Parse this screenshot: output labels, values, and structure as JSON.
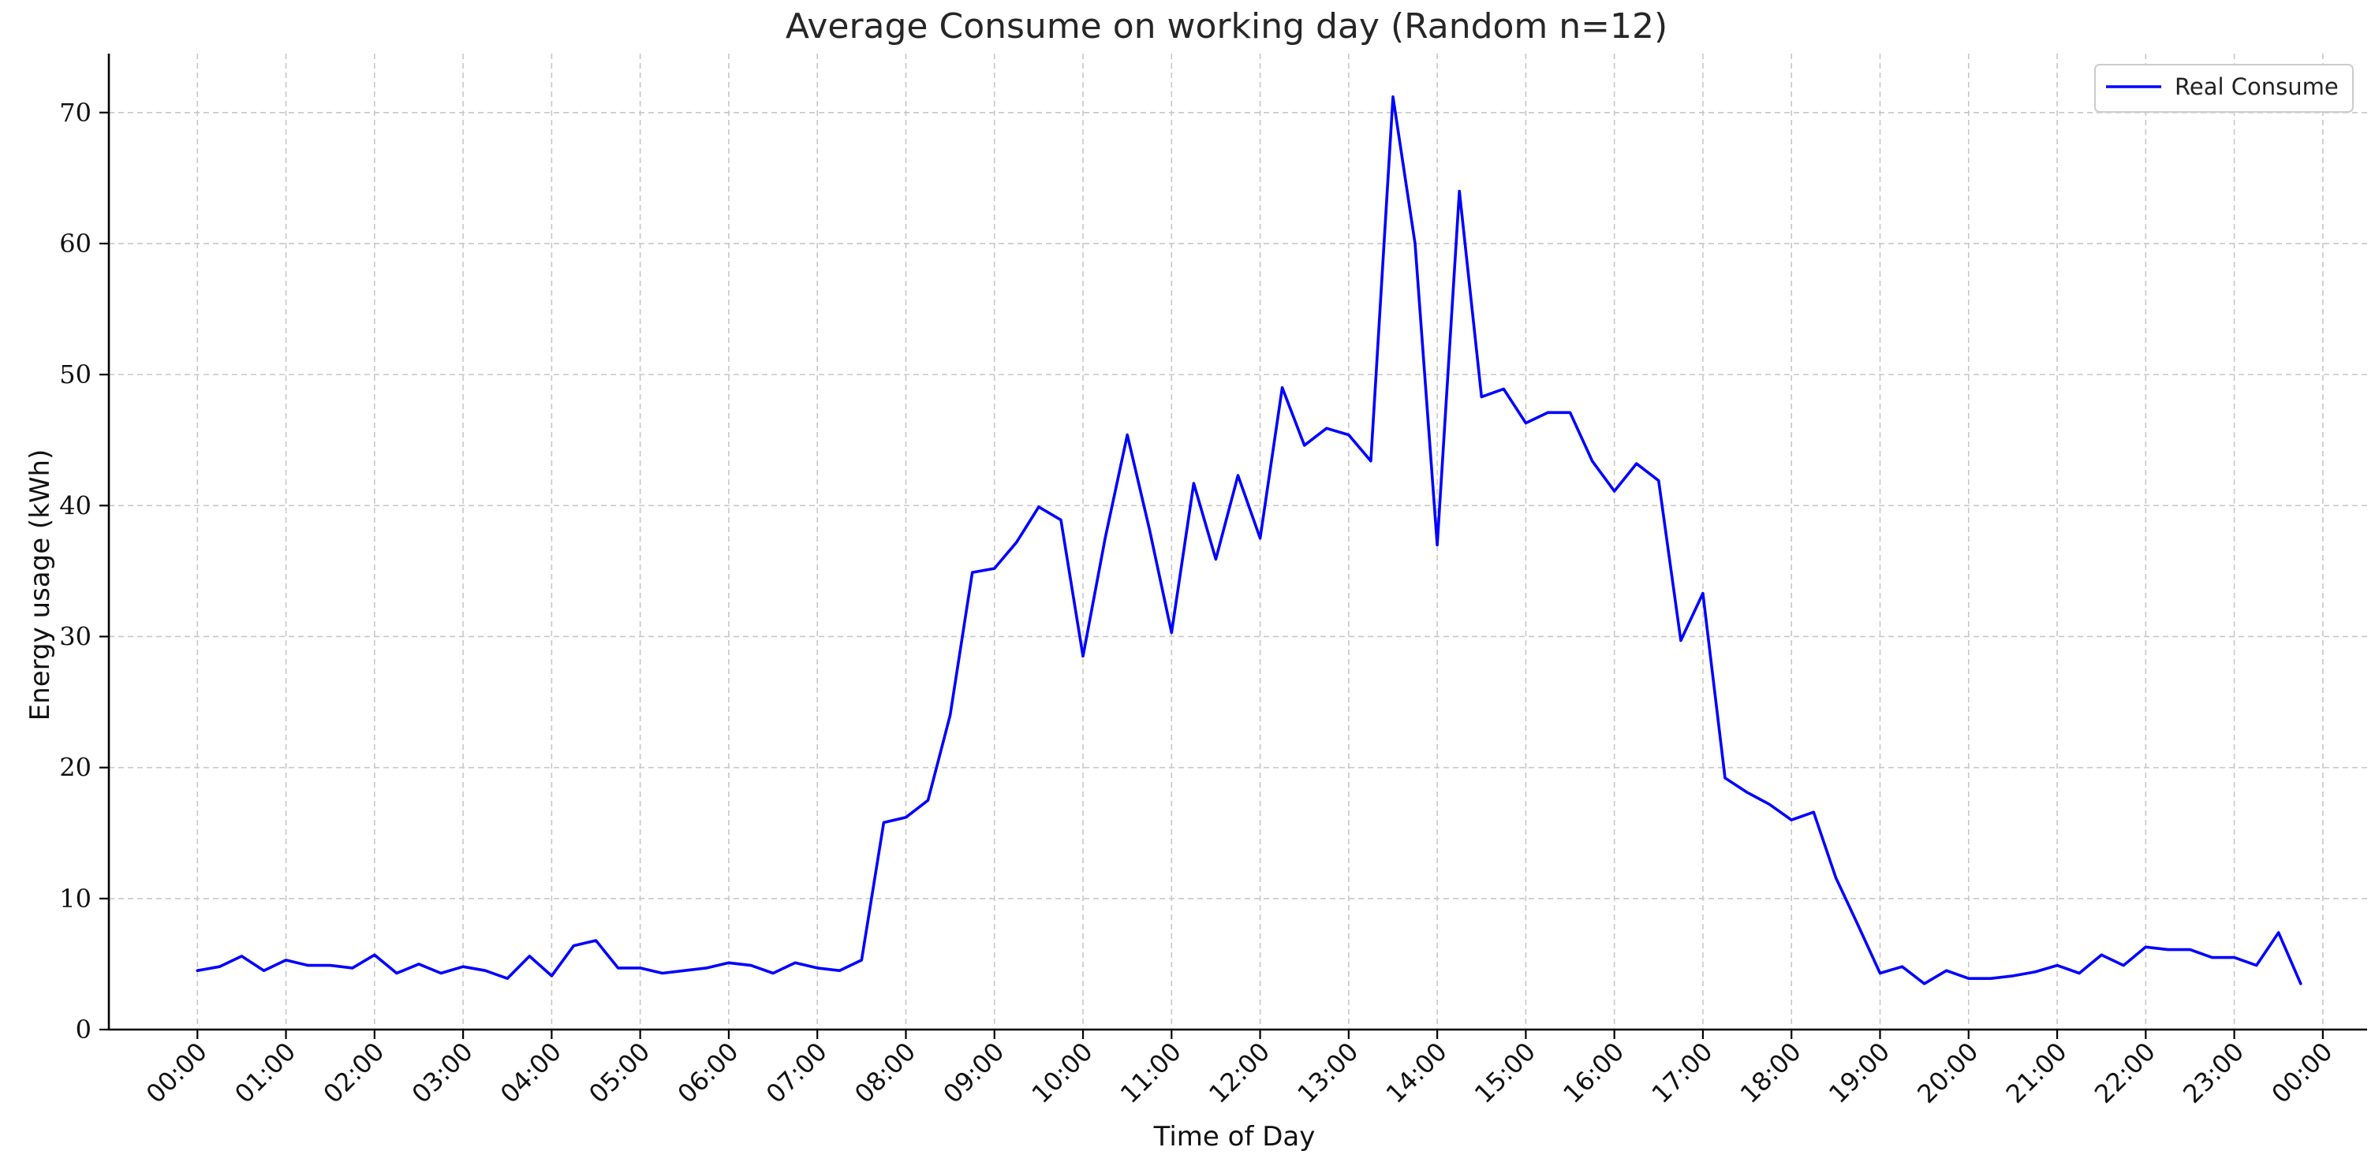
{
  "chart_data": {
    "type": "line",
    "title": "Average Consume on working day (Random n=12)",
    "xlabel": "Time of Day",
    "ylabel": "Energy usage (kWh)",
    "x_ticks": [
      "00:00",
      "01:00",
      "02:00",
      "03:00",
      "04:00",
      "05:00",
      "06:00",
      "07:00",
      "08:00",
      "09:00",
      "10:00",
      "11:00",
      "12:00",
      "13:00",
      "14:00",
      "15:00",
      "16:00",
      "17:00",
      "18:00",
      "19:00",
      "20:00",
      "21:00",
      "22:00",
      "23:00",
      "00:00"
    ],
    "y_ticks": [
      0,
      10,
      20,
      30,
      40,
      50,
      60,
      70
    ],
    "xlim_hours": [
      -1,
      24.5
    ],
    "ylim": [
      0,
      74.5
    ],
    "grid": true,
    "legend_position": "top-right",
    "series": [
      {
        "name": "Real Consume",
        "color": "#0000ff",
        "x_hours": [
          0,
          0.25,
          0.5,
          0.75,
          1,
          1.25,
          1.5,
          1.75,
          2,
          2.25,
          2.5,
          2.75,
          3,
          3.25,
          3.5,
          3.75,
          4,
          4.25,
          4.5,
          4.75,
          5,
          5.25,
          5.5,
          5.75,
          6,
          6.25,
          6.5,
          6.75,
          7,
          7.25,
          7.5,
          7.75,
          8,
          8.25,
          8.5,
          8.75,
          9,
          9.25,
          9.5,
          9.75,
          10,
          10.25,
          10.5,
          10.75,
          11,
          11.25,
          11.5,
          11.75,
          12,
          12.25,
          12.5,
          12.75,
          13,
          13.25,
          13.5,
          13.75,
          14,
          14.25,
          14.5,
          14.75,
          15,
          15.25,
          15.5,
          15.75,
          16,
          16.25,
          16.5,
          16.75,
          17,
          17.25,
          17.5,
          17.75,
          18,
          18.25,
          18.5,
          18.75,
          19,
          19.25,
          19.5,
          19.75,
          20,
          20.25,
          20.5,
          20.75,
          21,
          21.25,
          21.5,
          21.75,
          22,
          22.25,
          22.5,
          22.75,
          23,
          23.25,
          23.5,
          23.75
        ],
        "values": [
          4.5,
          4.8,
          5.6,
          4.5,
          5.3,
          4.9,
          4.9,
          4.7,
          5.7,
          4.3,
          5.0,
          4.3,
          4.8,
          4.5,
          3.9,
          5.6,
          4.1,
          6.4,
          6.8,
          4.7,
          4.7,
          4.3,
          4.5,
          4.7,
          5.1,
          4.9,
          4.3,
          5.1,
          4.7,
          4.5,
          5.3,
          15.8,
          16.2,
          17.5,
          24.0,
          34.9,
          35.2,
          37.2,
          39.9,
          38.9,
          28.5,
          37.5,
          45.4,
          38.2,
          30.3,
          41.7,
          35.9,
          42.3,
          37.5,
          49.0,
          44.6,
          45.9,
          45.4,
          43.4,
          71.2,
          60.0,
          37.0,
          64.0,
          48.3,
          48.9,
          46.3,
          47.1,
          47.1,
          43.4,
          41.1,
          43.2,
          41.9,
          29.7,
          33.3,
          19.2,
          18.1,
          17.2,
          16.0,
          16.6,
          11.6,
          8.0,
          4.3,
          4.8,
          3.5,
          4.5,
          3.9,
          3.9,
          4.1,
          4.4,
          4.9,
          4.3,
          5.7,
          4.9,
          6.3,
          6.1,
          6.1,
          5.5,
          5.5,
          4.9,
          7.4,
          3.5
        ]
      }
    ]
  }
}
